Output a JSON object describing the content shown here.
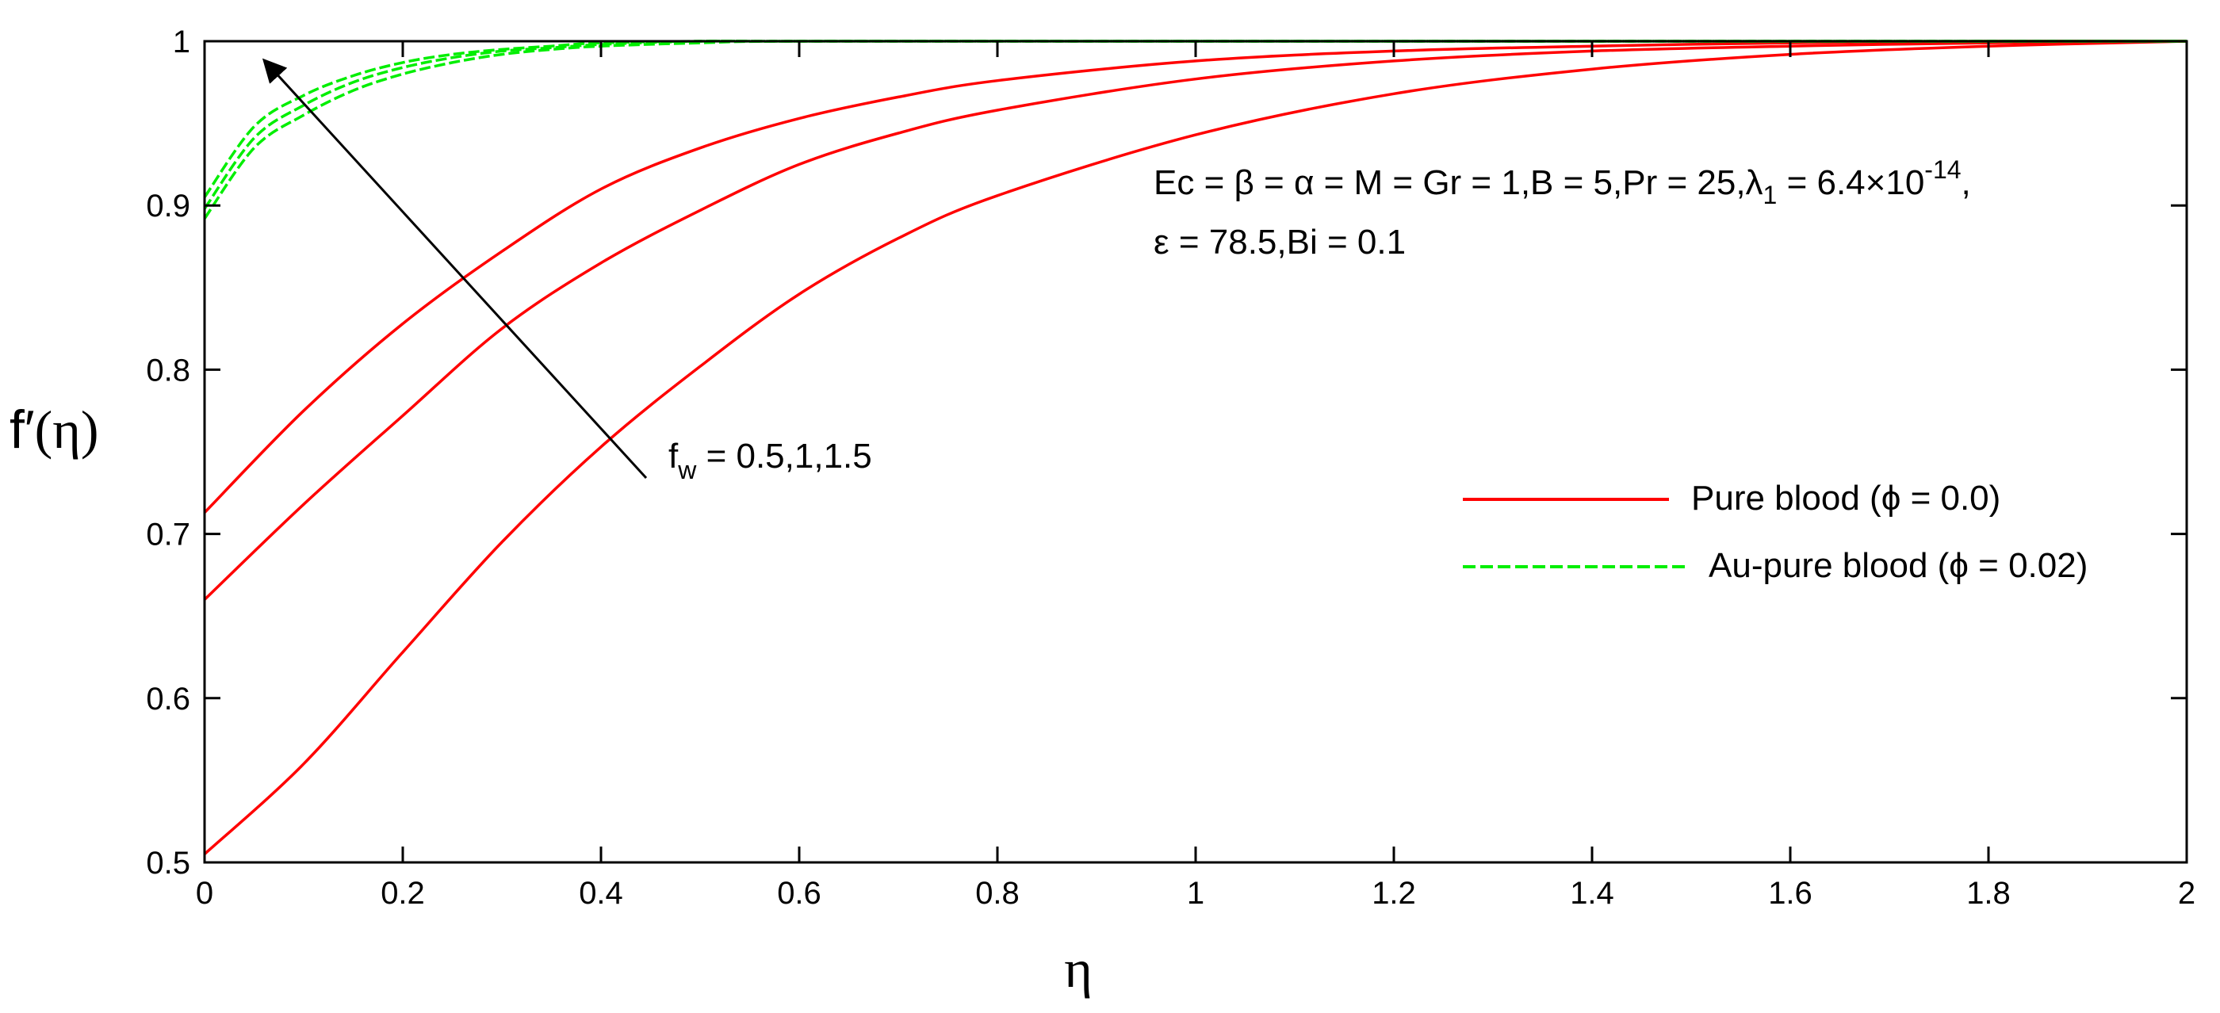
{
  "chart_data": {
    "type": "line",
    "xlabel": "η",
    "ylabel_main": "f′",
    "ylabel_arg": "(η)",
    "xlim": [
      0,
      2
    ],
    "ylim": [
      0.5,
      1.0
    ],
    "x_ticks": [
      0,
      0.2,
      0.4,
      0.6,
      0.8,
      1,
      1.2,
      1.4,
      1.6,
      1.8,
      2
    ],
    "x_tick_labels": [
      "0",
      "0.2",
      "0.4",
      "0.6",
      "0.8",
      "1",
      "1.2",
      "1.4",
      "1.6",
      "1.8",
      "2"
    ],
    "y_ticks": [
      0.5,
      0.6,
      0.7,
      0.8,
      0.9,
      1.0
    ],
    "y_tick_labels": [
      "0.5",
      "0.6",
      "0.7",
      "0.8",
      "0.9",
      "1"
    ],
    "grid": false,
    "legend_position": "right",
    "legend": [
      {
        "label": "Pure blood (ϕ = 0.0)",
        "color": "#ff0000",
        "style": "solid"
      },
      {
        "label": "Au-pure blood (ϕ = 0.02)",
        "color": "#00ee00",
        "style": "dashed"
      }
    ],
    "params_line1": "Ec = β = α = M = Gr = 1,B = 5,Pr = 25,λ",
    "params_sub1": "1",
    "params_line1b": " = 6.4×10",
    "params_sup": "-14",
    "params_line1c": ",",
    "params_line2": "ε = 78.5,Bi = 0.1",
    "fw_main": "f",
    "fw_sub": "w",
    "fw_rest": " = 0.5,1,1.5",
    "series": [
      {
        "group": "Pure blood",
        "color": "#ff0000",
        "dash": false,
        "x": [
          0,
          0.1,
          0.2,
          0.3,
          0.4,
          0.5,
          0.6,
          0.7,
          0.8,
          1.0,
          1.2,
          1.4,
          1.6,
          1.8,
          2.0
        ],
        "y": [
          0.713,
          0.775,
          0.828,
          0.872,
          0.91,
          0.935,
          0.953,
          0.966,
          0.976,
          0.988,
          0.994,
          0.997,
          0.999,
          1.0,
          1.0
        ]
      },
      {
        "group": "Pure blood",
        "color": "#ff0000",
        "dash": false,
        "x": [
          0,
          0.1,
          0.2,
          0.3,
          0.4,
          0.5,
          0.6,
          0.7,
          0.8,
          1.0,
          1.2,
          1.4,
          1.6,
          1.8,
          2.0
        ],
        "y": [
          0.66,
          0.718,
          0.772,
          0.825,
          0.865,
          0.897,
          0.925,
          0.944,
          0.958,
          0.977,
          0.988,
          0.994,
          0.997,
          0.999,
          1.0
        ]
      },
      {
        "group": "Pure blood",
        "color": "#ff0000",
        "dash": false,
        "x": [
          0,
          0.1,
          0.2,
          0.3,
          0.4,
          0.5,
          0.6,
          0.7,
          0.8,
          1.0,
          1.2,
          1.4,
          1.6,
          1.8,
          2.0
        ],
        "y": [
          0.505,
          0.56,
          0.628,
          0.695,
          0.753,
          0.802,
          0.846,
          0.88,
          0.906,
          0.943,
          0.968,
          0.983,
          0.992,
          0.997,
          1.0
        ]
      },
      {
        "group": "Au-pure blood",
        "color": "#00ee00",
        "dash": true,
        "x": [
          0,
          0.05,
          0.1,
          0.15,
          0.2,
          0.25,
          0.3,
          0.35,
          0.4,
          0.5,
          0.6,
          1.0,
          1.5,
          2.0
        ],
        "y": [
          0.905,
          0.948,
          0.967,
          0.979,
          0.987,
          0.992,
          0.995,
          0.997,
          0.999,
          1.0,
          1.0,
          1.0,
          1.0,
          1.0
        ]
      },
      {
        "group": "Au-pure blood",
        "color": "#00ee00",
        "dash": true,
        "x": [
          0,
          0.05,
          0.1,
          0.15,
          0.2,
          0.25,
          0.3,
          0.35,
          0.4,
          0.5,
          0.6,
          1.0,
          1.5,
          2.0
        ],
        "y": [
          0.898,
          0.941,
          0.961,
          0.975,
          0.984,
          0.99,
          0.994,
          0.996,
          0.998,
          1.0,
          1.0,
          1.0,
          1.0,
          1.0
        ]
      },
      {
        "group": "Au-pure blood",
        "color": "#00ee00",
        "dash": true,
        "x": [
          0,
          0.05,
          0.1,
          0.15,
          0.2,
          0.25,
          0.3,
          0.35,
          0.4,
          0.5,
          0.6,
          1.0,
          1.5,
          2.0
        ],
        "y": [
          0.892,
          0.935,
          0.955,
          0.97,
          0.98,
          0.987,
          0.992,
          0.995,
          0.997,
          0.999,
          1.0,
          1.0,
          1.0,
          1.0
        ]
      }
    ]
  }
}
